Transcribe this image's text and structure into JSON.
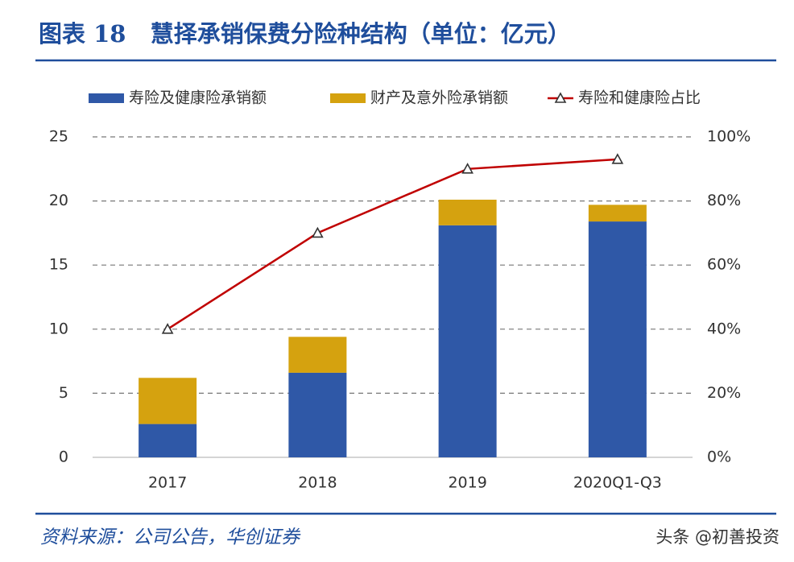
{
  "chart_data": {
    "type": "bar",
    "title": "图表 18   慧择承销保费分险种结构（单位：亿元）",
    "categories": [
      "2017",
      "2018",
      "2019",
      "2020Q1-Q3"
    ],
    "series": [
      {
        "name": "寿险及健康险承销额",
        "color": "#2f58a7",
        "values": [
          2.6,
          6.6,
          18.1,
          18.4
        ]
      },
      {
        "name": "财产及意外险承销额",
        "color": "#d5a20f",
        "values": [
          3.6,
          2.8,
          2.0,
          1.3
        ]
      },
      {
        "name": "寿险和健康险占比",
        "color": "#c00000",
        "axis": "y2",
        "type": "line",
        "values": [
          40,
          70,
          90,
          93
        ]
      }
    ],
    "ylim": [
      0,
      25
    ],
    "yticks": [
      0,
      5,
      10,
      15,
      20,
      25
    ],
    "y2lim": [
      0,
      100
    ],
    "y2ticks": [
      {
        "value": 0,
        "label": "0%"
      },
      {
        "value": 20,
        "label": "20%"
      },
      {
        "value": 40,
        "label": "40%"
      },
      {
        "value": 60,
        "label": "60%"
      },
      {
        "value": 80,
        "label": "80%"
      },
      {
        "value": 100,
        "label": "100%"
      }
    ],
    "grid": true,
    "stacked": true,
    "source": "资料来源：公司公告，华创证券",
    "watermark": "头条 @初善投资"
  }
}
